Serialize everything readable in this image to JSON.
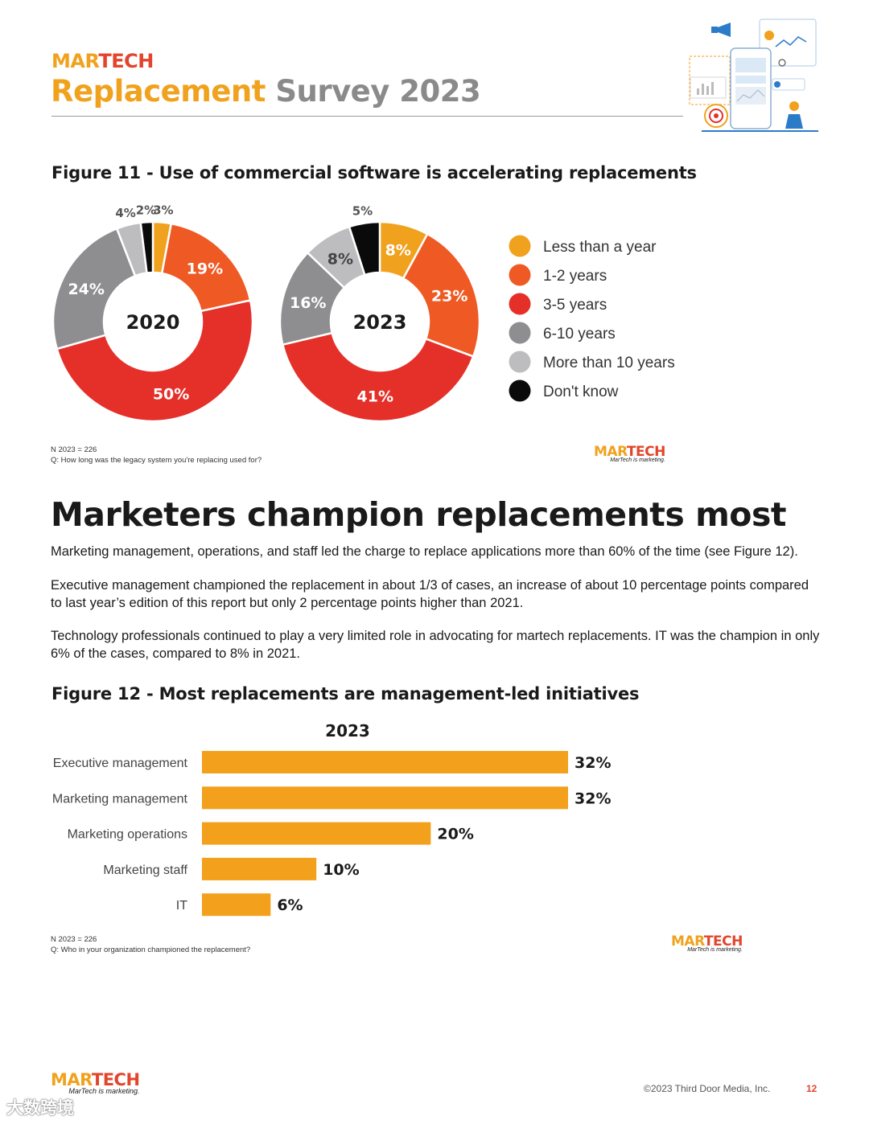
{
  "header": {
    "brand": "MARTECH",
    "title_part1": "Replacement",
    "title_part2": "Survey 2023"
  },
  "brand_logo": {
    "name": "MARTECH",
    "tagline": "MarTech is marketing."
  },
  "colors": {
    "orange": "#f0a21e",
    "dark_orange": "#ef5a24",
    "red": "#e5302a",
    "dark_gray": "#8e8e90",
    "light_gray": "#bdbdbf",
    "black": "#0a0a0a",
    "bar": "#f3a11d"
  },
  "figure11": {
    "title": "Figure 11 - Use of commercial software is accelerating replacements",
    "note_n": "N 2023 = 226",
    "note_q": "Q: How long was the legacy system you're replacing used for?"
  },
  "section": {
    "heading": "Marketers champion replacements most",
    "p1": "Marketing management, operations, and staff led the charge to replace applications more than 60% of the time (see Figure 12).",
    "p2": "Executive management championed the replacement in about 1/3 of cases, an increase of about 10 percentage points compared to last year’s edition of this report but only 2 percentage points higher than 2021.",
    "p3": "Technology professionals continued to play a very limited role in advocating for martech replacements. IT was the champion in only 6% of the cases, compared to 8% in 2021."
  },
  "figure12": {
    "title": "Figure 12 - Most replacements are management-led initiatives",
    "note_n": "N 2023 = 226",
    "note_q": "Q: Who in your organization championed the replacement?"
  },
  "footer": {
    "copyright": "©2023 Third Door Media, Inc.",
    "page": "12",
    "watermark": "大数跨境"
  },
  "chart_data": [
    {
      "type": "pie",
      "donut": true,
      "center_label": "2020",
      "categories": [
        "Less than a year",
        "1-2 years",
        "3-5 years",
        "6-10 years",
        "More than 10 years",
        "Don't know"
      ],
      "values": [
        3,
        19,
        50,
        24,
        4,
        2
      ],
      "unit": "%",
      "legend_position": "right"
    },
    {
      "type": "pie",
      "donut": true,
      "center_label": "2023",
      "categories": [
        "Less than a year",
        "1-2 years",
        "3-5 years",
        "6-10 years",
        "More than 10 years",
        "Don't know"
      ],
      "values": [
        8,
        23,
        41,
        16,
        8,
        5
      ],
      "unit": "%",
      "legend_position": "right"
    },
    {
      "type": "bar",
      "orientation": "horizontal",
      "title": "2023",
      "categories": [
        "Executive management",
        "Marketing management",
        "Marketing operations",
        "Marketing staff",
        "IT"
      ],
      "values": [
        32,
        32,
        20,
        10,
        6
      ],
      "unit": "%"
    }
  ]
}
